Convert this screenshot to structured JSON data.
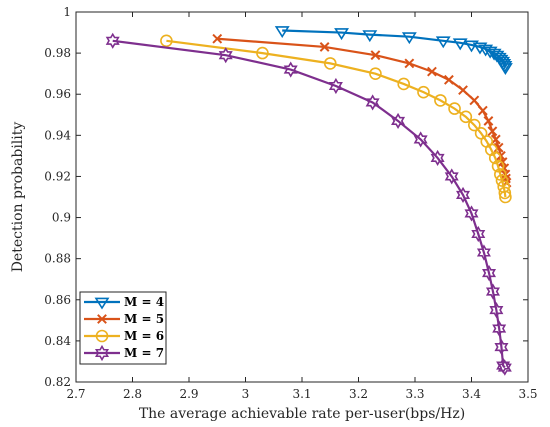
{
  "chart_data": {
    "type": "line",
    "title": "",
    "xlabel": "The average achievable rate per-user(bps/Hz)",
    "ylabel": "Detection probability",
    "xlim": [
      2.7,
      3.5
    ],
    "ylim": [
      0.82,
      1.0
    ],
    "xticks": [
      "2.7",
      "2.8",
      "2.9",
      "3",
      "3.1",
      "3.2",
      "3.3",
      "3.4",
      "3.5"
    ],
    "yticks": [
      "0.82",
      "0.84",
      "0.86",
      "0.88",
      "0.9",
      "0.92",
      "0.94",
      "0.96",
      "0.98",
      "1"
    ],
    "grid": false,
    "legend_position": "bottom-left",
    "series": [
      {
        "name": "M = 4",
        "color": "#0072BD",
        "marker": "triangle-down",
        "x": [
          3.065,
          3.17,
          3.22,
          3.29,
          3.35,
          3.38,
          3.4,
          3.415,
          3.425,
          3.433,
          3.44,
          3.445,
          3.449,
          3.452,
          3.455,
          3.457,
          3.459,
          3.46
        ],
        "y": [
          0.991,
          0.99,
          0.989,
          0.988,
          0.986,
          0.985,
          0.984,
          0.983,
          0.982,
          0.981,
          0.98,
          0.979,
          0.978,
          0.977,
          0.976,
          0.975,
          0.974,
          0.973
        ]
      },
      {
        "name": "M = 5",
        "color": "#D95319",
        "marker": "x",
        "x": [
          2.95,
          3.14,
          3.23,
          3.29,
          3.33,
          3.36,
          3.385,
          3.405,
          3.42,
          3.43,
          3.437,
          3.443,
          3.448,
          3.452,
          3.455,
          3.458,
          3.46,
          3.461,
          3.462
        ],
        "y": [
          0.987,
          0.983,
          0.979,
          0.975,
          0.971,
          0.967,
          0.962,
          0.957,
          0.952,
          0.947,
          0.942,
          0.938,
          0.934,
          0.93,
          0.927,
          0.924,
          0.921,
          0.919,
          0.917
        ]
      },
      {
        "name": "M = 6",
        "color": "#EDB120",
        "marker": "circle",
        "x": [
          2.86,
          3.03,
          3.15,
          3.23,
          3.28,
          3.315,
          3.345,
          3.37,
          3.39,
          3.405,
          3.417,
          3.427,
          3.435,
          3.442,
          3.447,
          3.451,
          3.454,
          3.457,
          3.459,
          3.46
        ],
        "y": [
          0.986,
          0.98,
          0.975,
          0.97,
          0.965,
          0.961,
          0.957,
          0.953,
          0.949,
          0.945,
          0.941,
          0.937,
          0.933,
          0.929,
          0.925,
          0.921,
          0.918,
          0.915,
          0.912,
          0.91
        ]
      },
      {
        "name": "M = 7",
        "color": "#7E2F8E",
        "marker": "hexagram",
        "x": [
          2.765,
          2.965,
          3.08,
          3.16,
          3.225,
          3.27,
          3.31,
          3.34,
          3.365,
          3.385,
          3.4,
          3.412,
          3.422,
          3.431,
          3.438,
          3.444,
          3.449,
          3.453,
          3.456,
          3.459
        ],
        "y": [
          0.986,
          0.979,
          0.972,
          0.964,
          0.956,
          0.947,
          0.938,
          0.929,
          0.92,
          0.911,
          0.902,
          0.892,
          0.883,
          0.873,
          0.864,
          0.855,
          0.846,
          0.837,
          0.828,
          0.827
        ]
      }
    ]
  }
}
